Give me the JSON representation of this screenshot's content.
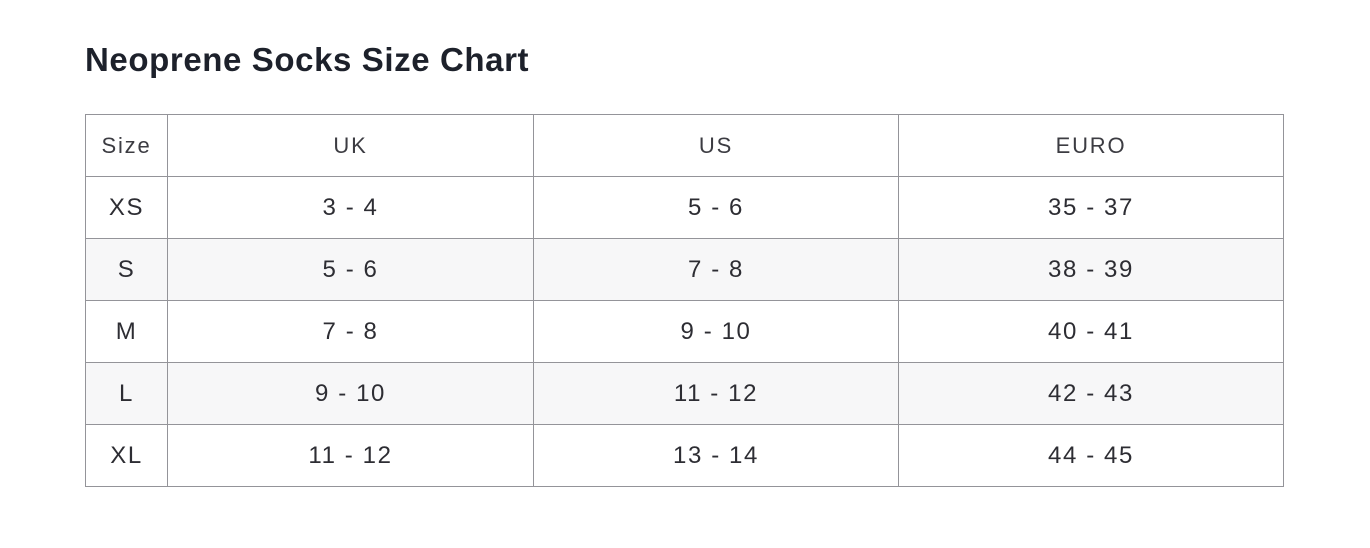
{
  "page": {
    "title": "Neoprene Socks Size Chart"
  },
  "table": {
    "columns": [
      "Size",
      "UK",
      "US",
      "EURO"
    ],
    "rows": [
      {
        "size": "XS",
        "uk": "3 - 4",
        "us": "5 - 6",
        "euro": "35 - 37"
      },
      {
        "size": "S",
        "uk": "5 - 6",
        "us": "7 - 8",
        "euro": "38 - 39"
      },
      {
        "size": "M",
        "uk": "7 - 8",
        "us": "9 - 10",
        "euro": "40 - 41"
      },
      {
        "size": "L",
        "uk": "9 - 10",
        "us": "11 - 12",
        "euro": "42 - 43"
      },
      {
        "size": "XL",
        "uk": "11 - 12",
        "us": "13 - 14",
        "euro": "44 - 45"
      }
    ]
  },
  "colors": {
    "title_text": "#1d212b",
    "header_text": "#3c3c42",
    "cell_text": "#2d2d33",
    "border": "#949499",
    "striped_row_bg": "#f7f7f8",
    "page_bg": "#ffffff"
  }
}
